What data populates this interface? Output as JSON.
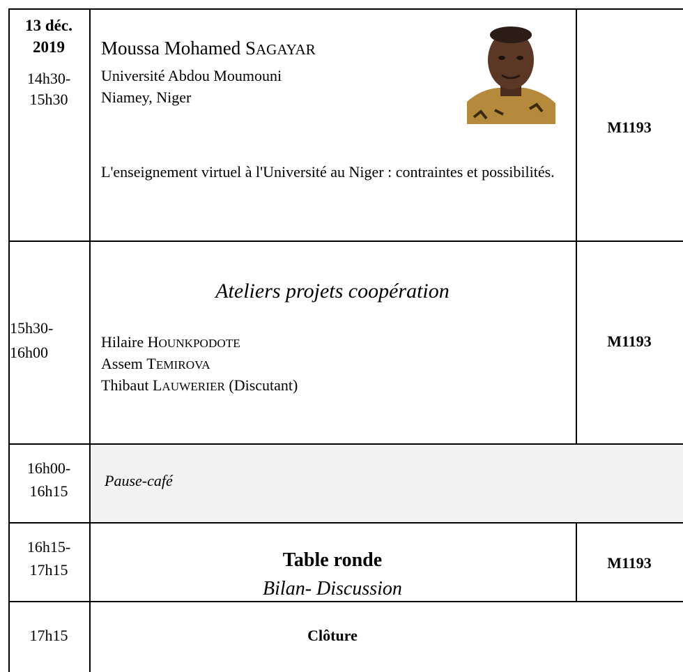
{
  "rows": [
    {
      "date": [
        "13 déc.",
        "2019"
      ],
      "time": [
        "14h30-",
        "15h30"
      ],
      "speaker": {
        "first": "Moussa Mohamed",
        "last": "SAGAYAR",
        "affiliation": [
          "Université Abdou Moumouni",
          "Niamey, Niger"
        ]
      },
      "talk": "L'enseignement virtuel à l'Université au Niger : contraintes et possibilités.",
      "room": "M1193"
    },
    {
      "time": [
        "15h30-",
        "16h00"
      ],
      "title": "Ateliers projets coopération",
      "people": [
        {
          "first": "Hilaire",
          "last": "HOUNKPODOTE"
        },
        {
          "first": "Assem",
          "last": "TEMIROVA"
        },
        {
          "first": "Thibaut",
          "last": "LAUWERIER",
          "note": "(Discutant)"
        }
      ],
      "room": "M1193"
    },
    {
      "time": [
        "16h00-",
        "16h15"
      ],
      "title": "Pause-café"
    },
    {
      "time": [
        "16h15-",
        "17h15"
      ],
      "title": "Table ronde",
      "subtitle": "Bilan- Discussion",
      "room": "M1193"
    },
    {
      "time": [
        "17h15"
      ],
      "title": "Clôture"
    }
  ]
}
